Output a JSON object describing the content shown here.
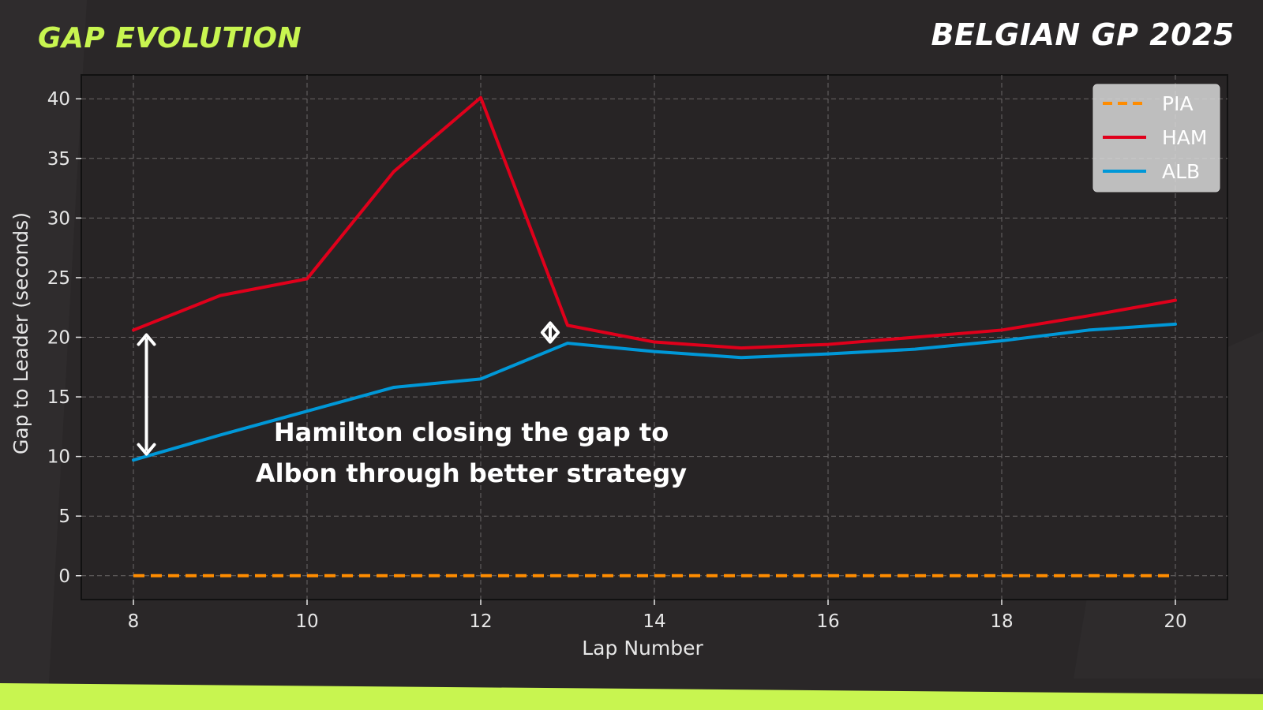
{
  "header": {
    "title": "GAP EVOLUTION",
    "event": "BELGIAN GP 2025"
  },
  "colors": {
    "background": "#2a2728",
    "plot_background": "#272425",
    "accent": "#c8f550",
    "grid": "#6a6667"
  },
  "chart_data": {
    "type": "line",
    "title": "",
    "xlabel": "Lap Number",
    "ylabel": "Gap to Leader (seconds)",
    "xlim": [
      7.4,
      20.6
    ],
    "ylim": [
      -2,
      42
    ],
    "xticks": [
      8,
      10,
      12,
      14,
      16,
      18,
      20
    ],
    "yticks": [
      0,
      5,
      10,
      15,
      20,
      25,
      30,
      35,
      40
    ],
    "grid": true,
    "legend_position": "top-right",
    "x": [
      8,
      9,
      10,
      11,
      12,
      13,
      14,
      15,
      16,
      17,
      18,
      19,
      20
    ],
    "series": [
      {
        "name": "PIA",
        "color": "#ff8c00",
        "style": "dashed",
        "values": [
          0,
          0,
          0,
          0,
          0,
          0,
          0,
          0,
          0,
          0,
          0,
          0,
          0
        ]
      },
      {
        "name": "HAM",
        "color": "#e0001b",
        "style": "solid",
        "values": [
          20.6,
          23.5,
          24.9,
          33.9,
          40.1,
          21.0,
          19.6,
          19.1,
          19.4,
          20.0,
          20.6,
          21.8,
          23.1
        ]
      },
      {
        "name": "ALB",
        "color": "#0098d8",
        "style": "solid",
        "values": [
          9.7,
          11.8,
          13.8,
          15.8,
          16.5,
          19.5,
          18.8,
          18.3,
          18.6,
          19.0,
          19.7,
          20.6,
          21.1
        ]
      }
    ],
    "annotations": {
      "text_lines": [
        "Hamilton closing the gap to",
        "Albon through better strategy"
      ],
      "arrows": [
        {
          "x": 8.15,
          "y_from": 10.2,
          "y_to": 20.2
        },
        {
          "x": 12.8,
          "y_from": 19.6,
          "y_to": 21.2
        }
      ],
      "text_anchor": {
        "x": 12.8,
        "y": 11.3
      }
    }
  }
}
